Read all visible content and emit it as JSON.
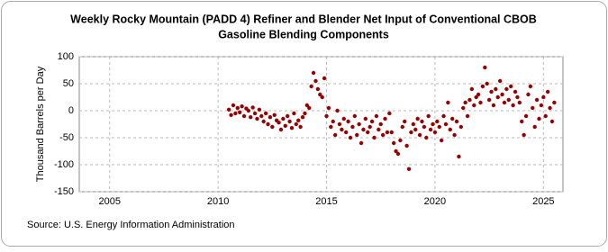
{
  "chart_data": {
    "type": "scatter",
    "title": "Weekly Rocky Mountain (PADD 4) Refiner and Blender Net Input of Conventional CBOB",
    "subtitle": "Gasoline Blending Components",
    "y_label": "Thousand Barrels per Day",
    "source": "Source: U.S. Energy Information Administration",
    "color": "#990000",
    "grid": true,
    "xlim": [
      2003.6,
      2025.9
    ],
    "ylim": [
      -150,
      100
    ],
    "xticks": [
      2005,
      2010,
      2015,
      2020,
      2025
    ],
    "yticks": [
      -150,
      -100,
      -50,
      0,
      50,
      100
    ],
    "x": [
      2010.5,
      2010.6,
      2010.7,
      2010.8,
      2010.9,
      2011.0,
      2011.1,
      2011.2,
      2011.3,
      2011.4,
      2011.5,
      2011.6,
      2011.7,
      2011.8,
      2011.9,
      2012.0,
      2012.1,
      2012.2,
      2012.3,
      2012.4,
      2012.5,
      2012.6,
      2012.7,
      2012.8,
      2012.9,
      2013.0,
      2013.1,
      2013.2,
      2013.3,
      2013.4,
      2013.5,
      2013.6,
      2013.7,
      2013.8,
      2013.9,
      2014.0,
      2014.1,
      2014.2,
      2014.3,
      2014.4,
      2014.5,
      2014.6,
      2014.7,
      2014.8,
      2014.9,
      2015.0,
      2015.1,
      2015.2,
      2015.3,
      2015.4,
      2015.5,
      2015.6,
      2015.7,
      2015.8,
      2015.9,
      2016.0,
      2016.1,
      2016.2,
      2016.3,
      2016.4,
      2016.5,
      2016.6,
      2016.7,
      2016.8,
      2016.9,
      2017.0,
      2017.1,
      2017.2,
      2017.3,
      2017.4,
      2017.5,
      2017.6,
      2017.7,
      2017.8,
      2017.9,
      2018.0,
      2018.1,
      2018.2,
      2018.3,
      2018.4,
      2018.5,
      2018.6,
      2018.7,
      2018.8,
      2018.9,
      2019.0,
      2019.1,
      2019.2,
      2019.3,
      2019.4,
      2019.5,
      2019.6,
      2019.7,
      2019.8,
      2019.9,
      2020.0,
      2020.1,
      2020.2,
      2020.3,
      2020.4,
      2020.5,
      2020.6,
      2020.7,
      2020.8,
      2020.9,
      2021.0,
      2021.1,
      2021.2,
      2021.3,
      2021.4,
      2021.5,
      2021.6,
      2021.7,
      2021.8,
      2021.9,
      2022.0,
      2022.1,
      2022.2,
      2022.3,
      2022.4,
      2022.5,
      2022.6,
      2022.7,
      2022.8,
      2022.9,
      2023.0,
      2023.1,
      2023.2,
      2023.3,
      2023.4,
      2023.5,
      2023.6,
      2023.7,
      2023.8,
      2023.9,
      2024.0,
      2024.1,
      2024.2,
      2024.3,
      2024.4,
      2024.5,
      2024.6,
      2024.7,
      2024.8,
      2024.9,
      2025.0,
      2025.1,
      2025.2,
      2025.3,
      2025.4,
      2025.5
    ],
    "values": [
      2,
      -8,
      10,
      -5,
      5,
      -3,
      8,
      -10,
      4,
      0,
      -12,
      6,
      -5,
      -15,
      2,
      -10,
      -20,
      -5,
      -25,
      -12,
      -30,
      -8,
      -18,
      -22,
      -35,
      -15,
      -28,
      -10,
      -20,
      -32,
      -5,
      -25,
      -18,
      -30,
      -12,
      -5,
      10,
      5,
      45,
      70,
      55,
      40,
      30,
      25,
      60,
      -10,
      5,
      -30,
      -20,
      -45,
      0,
      -25,
      -35,
      -15,
      -40,
      -20,
      -50,
      -30,
      -10,
      -45,
      -25,
      -60,
      -35,
      -15,
      -40,
      -30,
      -20,
      -50,
      -10,
      -35,
      -25,
      -45,
      -15,
      -40,
      -5,
      -40,
      -60,
      -75,
      -80,
      -55,
      -30,
      -20,
      -65,
      -108,
      -40,
      -25,
      -35,
      -15,
      -45,
      -20,
      -30,
      -50,
      -10,
      -35,
      -25,
      -40,
      -20,
      -30,
      -55,
      -10,
      -25,
      15,
      -35,
      -15,
      -45,
      -20,
      -85,
      -30,
      5,
      15,
      -10,
      20,
      40,
      10,
      25,
      30,
      15,
      45,
      80,
      50,
      20,
      35,
      10,
      40,
      25,
      55,
      30,
      15,
      40,
      20,
      45,
      10,
      35,
      25,
      15,
      -20,
      -45,
      -10,
      30,
      45,
      5,
      -30,
      20,
      -15,
      10,
      25,
      -10,
      35,
      5,
      -20,
      15
    ]
  }
}
